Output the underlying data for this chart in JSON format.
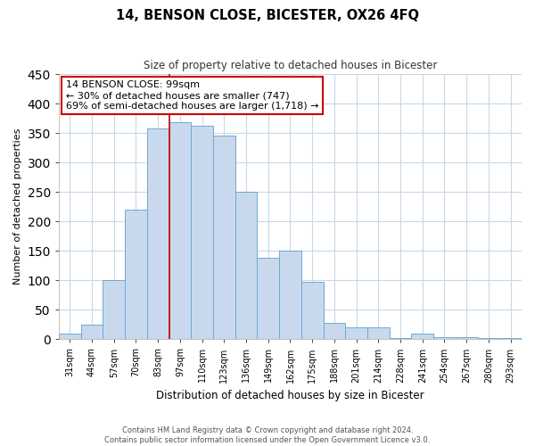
{
  "title": "14, BENSON CLOSE, BICESTER, OX26 4FQ",
  "subtitle": "Size of property relative to detached houses in Bicester",
  "xlabel": "Distribution of detached houses by size in Bicester",
  "ylabel": "Number of detached properties",
  "bar_labels": [
    "31sqm",
    "44sqm",
    "57sqm",
    "70sqm",
    "83sqm",
    "97sqm",
    "110sqm",
    "123sqm",
    "136sqm",
    "149sqm",
    "162sqm",
    "175sqm",
    "188sqm",
    "201sqm",
    "214sqm",
    "228sqm",
    "241sqm",
    "254sqm",
    "267sqm",
    "280sqm",
    "293sqm"
  ],
  "bar_values": [
    10,
    25,
    100,
    220,
    358,
    368,
    363,
    345,
    250,
    138,
    150,
    97,
    28,
    20,
    20,
    2,
    10,
    3,
    3,
    2,
    2
  ],
  "bar_color": "#c8d9ee",
  "bar_edge_color": "#6fa8d0",
  "vline_x": 5,
  "vline_color": "#cc0000",
  "annotation_title": "14 BENSON CLOSE: 99sqm",
  "annotation_line1": "← 30% of detached houses are smaller (747)",
  "annotation_line2": "69% of semi-detached houses are larger (1,718) →",
  "annotation_box_color": "#ffffff",
  "annotation_box_edge": "#cc0000",
  "ylim": [
    0,
    450
  ],
  "yticks": [
    0,
    50,
    100,
    150,
    200,
    250,
    300,
    350,
    400,
    450
  ],
  "footer_line1": "Contains HM Land Registry data © Crown copyright and database right 2024.",
  "footer_line2": "Contains public sector information licensed under the Open Government Licence v3.0.",
  "bg_color": "#ffffff",
  "grid_color": "#c8d8e8"
}
